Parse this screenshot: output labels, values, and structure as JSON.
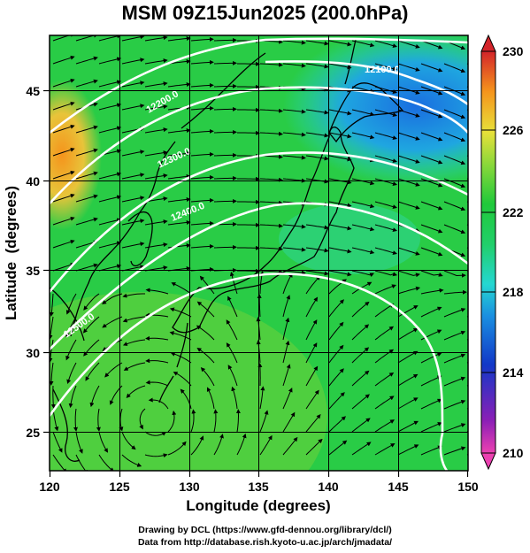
{
  "title": "MSM 09Z15Jun2025 (200.0hPa)",
  "map": {
    "x_axis_label": "Longitude (degrees)",
    "y_axis_label": "Latitude  (degrees)",
    "x_ticks": [
      "120",
      "125",
      "130",
      "135",
      "140",
      "145",
      "150"
    ],
    "y_ticks": [
      "25",
      "30",
      "35",
      "40",
      "45"
    ],
    "lon_range": [
      120,
      150
    ],
    "lat_range": [
      22.4,
      47.6
    ],
    "grid": true,
    "field": "temperature shading with streamlines",
    "contour_labels": [
      "12100.0",
      "12200.0",
      "12300.0",
      "12400.0",
      "12500.0"
    ]
  },
  "colorbar": {
    "labels": [
      "230",
      "226",
      "222",
      "218",
      "214",
      "210"
    ],
    "range": [
      210,
      230
    ],
    "colors": {
      "high": "#d3242a",
      "orange": "#f5941c",
      "yellow": "#e8e03a",
      "green": "#1fc93a",
      "cyan": "#25d7d2",
      "blue": "#1238c8",
      "purple": "#8c1fb6",
      "low": "#ec41b1"
    }
  },
  "credits": {
    "line1": "Drawing by DCL (https://www.gfd-dennou.org/library/dcl/)",
    "line2": "Data from http://database.rish.kyoto-u.ac.jp/arch/jmadata/"
  }
}
